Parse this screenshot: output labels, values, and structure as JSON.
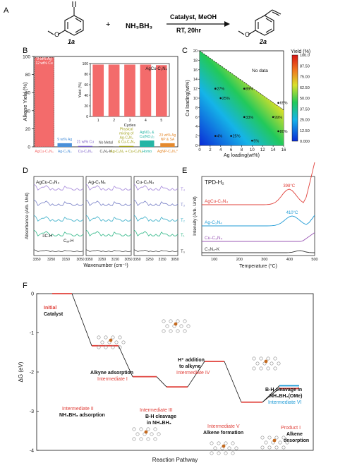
{
  "panels": {
    "A": "A",
    "B": "B",
    "C": "C",
    "D": "D",
    "E": "E",
    "F": "F"
  },
  "scheme": {
    "plus": "+",
    "reagent": "NH₃BH₃",
    "conditions_top": "Catalyst, MeOH",
    "conditions_bottom": "RT, 20hr",
    "reactant_label": "1a",
    "product_label": "2a"
  },
  "chart_data": [
    {
      "id": "B",
      "type": "bar",
      "ylabel": "Alkene Yield (%)",
      "ylim": [
        0,
        100
      ],
      "yticks": [
        0,
        20,
        40,
        60,
        80,
        100
      ],
      "categories": [
        "AgCu-C₃N₄",
        "Ag-C₃N₄",
        "Cu-C₃N₄",
        "C₃N₄-K",
        "Ag-C₃N₄ + Cu-C₃N₄",
        "Homo",
        "AgNP-C₃N₄*"
      ],
      "values": [
        99,
        4,
        1,
        0,
        1,
        7,
        4
      ],
      "bar_colors": [
        "#f36b6b",
        "#4a90d9",
        "#7b5fc7",
        "#444444",
        "#a3a31f",
        "#25b5a5",
        "#e58a2e"
      ],
      "annotations": [
        "9 wt% Ag\n12 wt% Cu",
        "9 wt% Ag",
        "21 wt% Cu",
        "No Metal",
        "Physical\nmixing of\nAg-C₃N₄\n& Cu-C₃N₄",
        "AgNO₃ &\nCu(NO₃)₂",
        "23 wt% Ag\nNP & SA"
      ]
    },
    {
      "id": "B-inset",
      "type": "bar",
      "title": "AgCu-C₃N₄",
      "xlabel": "Cycles",
      "ylabel": "Yield (%)",
      "ylim": [
        0,
        100
      ],
      "yticks": [
        0,
        20,
        40,
        60,
        80,
        100
      ],
      "categories": [
        "1",
        "2",
        "3",
        "4",
        "5"
      ],
      "values": [
        98,
        98,
        98,
        98,
        97
      ]
    },
    {
      "id": "C",
      "type": "heatmap",
      "xlabel": "Ag loading(wt%)",
      "ylabel": "Cu loading(wt%)",
      "xlim": [
        0,
        16
      ],
      "ylim": [
        0,
        20
      ],
      "xticks": [
        0,
        2,
        4,
        6,
        8,
        10,
        12,
        14,
        16
      ],
      "yticks": [
        0,
        2,
        4,
        6,
        8,
        10,
        12,
        14,
        16,
        18,
        20
      ],
      "colorbar_label": "Yield (%)",
      "colorbar_ticks": [
        "0.000",
        "12.50",
        "25.00",
        "37.50",
        "50.00",
        "62.50",
        "75.00",
        "87.50",
        "100.0"
      ],
      "no_data_label": "No data",
      "points": [
        {
          "x": 3,
          "y": 12,
          "label": "27%"
        },
        {
          "x": 4,
          "y": 10,
          "label": "25%"
        },
        {
          "x": 8.5,
          "y": 12,
          "label": "89%"
        },
        {
          "x": 8.5,
          "y": 6,
          "label": "33%"
        },
        {
          "x": 6,
          "y": 2,
          "label": "25%"
        },
        {
          "x": 3,
          "y": 2,
          "label": "4%"
        },
        {
          "x": 14,
          "y": 6,
          "label": "99%"
        },
        {
          "x": 15,
          "y": 3,
          "label": "80%"
        },
        {
          "x": 15,
          "y": 9,
          "label": "69%"
        },
        {
          "x": 10,
          "y": 1,
          "label": "5%"
        }
      ]
    },
    {
      "id": "D",
      "type": "line",
      "xlabel": "Wavenumber (cm⁻¹)",
      "ylabel": "Absorbance (Arb. Unit)",
      "subplots": [
        "AgCu-C₃N₄",
        "Ag-C₃N₄",
        "Cu-C₃N₄"
      ],
      "xticks": [
        "3350",
        "3250",
        "3150",
        "3050"
      ],
      "series": [
        {
          "name": "T₄"
        },
        {
          "name": "T₃"
        },
        {
          "name": "T₂"
        },
        {
          "name": "T₁"
        },
        {
          "name": "T₀"
        }
      ],
      "annotations": [
        "≡C-H",
        "Cₐᵣ-H"
      ]
    },
    {
      "id": "E",
      "type": "line",
      "title": "TPD-H₂",
      "xlabel": "Temperature (°C)",
      "ylabel": "Intensity (Arb. Unit)",
      "xlim": [
        50,
        500
      ],
      "xticks": [
        "100",
        "200",
        "300",
        "400",
        "500"
      ],
      "series": [
        {
          "name": "AgCu-C₃N₄",
          "peak": "398°C"
        },
        {
          "name": "Ag-C₃N₄",
          "peak": "410°C"
        },
        {
          "name": "Cu-C₃N₄"
        },
        {
          "name": "C₃N₄-K"
        }
      ]
    },
    {
      "id": "F",
      "type": "line",
      "xlabel": "Reaction Pathway",
      "ylabel": "ΔG (eV)",
      "ylim": [
        -4,
        0
      ],
      "yticks": [
        "0",
        "-1",
        "-2",
        "-3",
        "-4"
      ],
      "steps": [
        {
          "name": "Initial Catalyst",
          "G": 0.0
        },
        {
          "name": "Intermediate I",
          "G": -1.33
        },
        {
          "name": "Intermediate II",
          "G": -2.12
        },
        {
          "name": "Intermediate III",
          "G": -2.38
        },
        {
          "name": "Intermediate IV",
          "G": -1.73
        },
        {
          "name": "Intermediate V",
          "G": -2.77
        },
        {
          "name": "Intermediate VI",
          "G": -2.35
        },
        {
          "name": "Product I",
          "G": -2.42
        }
      ]
    }
  ],
  "F_labels": {
    "init_a": "Initial",
    "init_b": "Catalyst",
    "i1_a": "Alkyne adsorption",
    "i1_b": "Intermediate I",
    "i2_a": "Intermediate II",
    "i2_b": "NH₃BH₃ adsorption",
    "i3_a": "Intermediate III",
    "i3_b": "B-H cleavage",
    "i3_c": "in NH₃BH₃",
    "i4_a": "H⁺ addition",
    "i4_b": "to alkyne",
    "i4_c": "Intermediate IV",
    "i5_a": "Intermediate V",
    "i5_b": "Alkene formation",
    "i6_a": "B-H cleavage in",
    "i6_b": "NH₃BH₂(OMe)",
    "i6_c": "Intermediate VI",
    "p_a": "Product I",
    "p_b": "Alkene",
    "p_c": "desorption"
  },
  "colors": {
    "red": "#e0403a",
    "blue": "#1f9bd6",
    "black": "#111111"
  }
}
